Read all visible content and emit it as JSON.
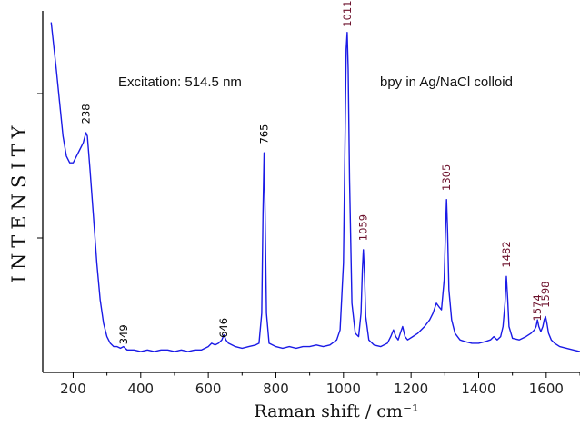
{
  "chart_data": {
    "type": "line",
    "title": "",
    "xlabel": "Raman shift  /  cm⁻¹",
    "ylabel": "INTENSITY",
    "xlim": [
      110,
      1700
    ],
    "ylim": [
      0,
      1
    ],
    "xticks": [
      200,
      400,
      600,
      800,
      1000,
      1200,
      1400,
      1600
    ],
    "grid": false,
    "line_color": "#1a1ae6",
    "annotations": [
      {
        "text": "Excitation: 514.5 nm"
      },
      {
        "text": "bpy in Ag/NaCl colloid"
      }
    ],
    "peak_labels": [
      {
        "x": 238,
        "y": 0.7,
        "text": "238",
        "color": "#000000"
      },
      {
        "x": 349,
        "y": 0.04,
        "text": "349",
        "color": "#000000"
      },
      {
        "x": 646,
        "y": 0.06,
        "text": "646",
        "color": "#000000"
      },
      {
        "x": 765,
        "y": 0.64,
        "text": "765",
        "color": "#000000"
      },
      {
        "x": 1011,
        "y": 0.99,
        "text": "1011",
        "color": "#6b0f2a"
      },
      {
        "x": 1059,
        "y": 0.35,
        "text": "1059",
        "color": "#6b0f2a"
      },
      {
        "x": 1305,
        "y": 0.5,
        "text": "1305",
        "color": "#6b0f2a"
      },
      {
        "x": 1482,
        "y": 0.27,
        "text": "1482",
        "color": "#6b0f2a"
      },
      {
        "x": 1574,
        "y": 0.11,
        "text": "1574",
        "color": "#6b0f2a"
      },
      {
        "x": 1598,
        "y": 0.15,
        "text": "1598",
        "color": "#6b0f2a"
      }
    ],
    "series": [
      {
        "x": [
          135,
          150,
          160,
          170,
          180,
          190,
          200,
          210,
          220,
          230,
          235,
          238,
          242,
          250,
          260,
          270,
          280,
          290,
          300,
          310,
          320,
          330,
          340,
          349,
          360,
          380,
          400,
          420,
          440,
          460,
          480,
          500,
          520,
          540,
          560,
          580,
          600,
          610,
          620,
          630,
          640,
          646,
          652,
          660,
          670,
          680,
          700,
          720,
          740,
          750,
          758,
          762,
          765,
          768,
          772,
          780,
          800,
          820,
          840,
          860,
          880,
          900,
          920,
          940,
          960,
          980,
          990,
          1000,
          1005,
          1008,
          1011,
          1014,
          1018,
          1025,
          1035,
          1045,
          1052,
          1056,
          1059,
          1062,
          1066,
          1075,
          1090,
          1110,
          1130,
          1140,
          1148,
          1155,
          1162,
          1168,
          1175,
          1182,
          1190,
          1205,
          1220,
          1240,
          1255,
          1265,
          1275,
          1282,
          1290,
          1298,
          1302,
          1305,
          1308,
          1312,
          1320,
          1330,
          1345,
          1360,
          1380,
          1400,
          1420,
          1435,
          1445,
          1455,
          1465,
          1472,
          1478,
          1482,
          1486,
          1490,
          1500,
          1520,
          1540,
          1555,
          1565,
          1570,
          1574,
          1578,
          1584,
          1590,
          1594,
          1598,
          1602,
          1607,
          1615,
          1625,
          1640,
          1660,
          1680,
          1700
        ],
        "values": [
          1.02,
          0.88,
          0.78,
          0.68,
          0.62,
          0.6,
          0.6,
          0.62,
          0.64,
          0.66,
          0.68,
          0.69,
          0.68,
          0.58,
          0.44,
          0.3,
          0.19,
          0.12,
          0.08,
          0.06,
          0.05,
          0.05,
          0.045,
          0.05,
          0.04,
          0.04,
          0.035,
          0.04,
          0.035,
          0.04,
          0.04,
          0.035,
          0.04,
          0.035,
          0.04,
          0.04,
          0.05,
          0.06,
          0.055,
          0.06,
          0.07,
          0.085,
          0.07,
          0.06,
          0.055,
          0.05,
          0.045,
          0.05,
          0.055,
          0.06,
          0.15,
          0.45,
          0.63,
          0.45,
          0.15,
          0.06,
          0.05,
          0.045,
          0.05,
          0.045,
          0.05,
          0.05,
          0.055,
          0.05,
          0.055,
          0.07,
          0.1,
          0.3,
          0.7,
          0.94,
          0.99,
          0.88,
          0.55,
          0.18,
          0.09,
          0.08,
          0.15,
          0.28,
          0.34,
          0.27,
          0.14,
          0.07,
          0.055,
          0.05,
          0.06,
          0.08,
          0.1,
          0.08,
          0.07,
          0.09,
          0.11,
          0.08,
          0.07,
          0.08,
          0.09,
          0.11,
          0.13,
          0.15,
          0.18,
          0.17,
          0.16,
          0.25,
          0.4,
          0.49,
          0.4,
          0.22,
          0.13,
          0.09,
          0.07,
          0.065,
          0.06,
          0.06,
          0.065,
          0.07,
          0.08,
          0.07,
          0.08,
          0.11,
          0.18,
          0.26,
          0.19,
          0.11,
          0.075,
          0.07,
          0.08,
          0.09,
          0.1,
          0.11,
          0.13,
          0.11,
          0.095,
          0.11,
          0.13,
          0.14,
          0.12,
          0.09,
          0.07,
          0.06,
          0.05,
          0.045,
          0.04,
          0.035
        ]
      }
    ]
  }
}
